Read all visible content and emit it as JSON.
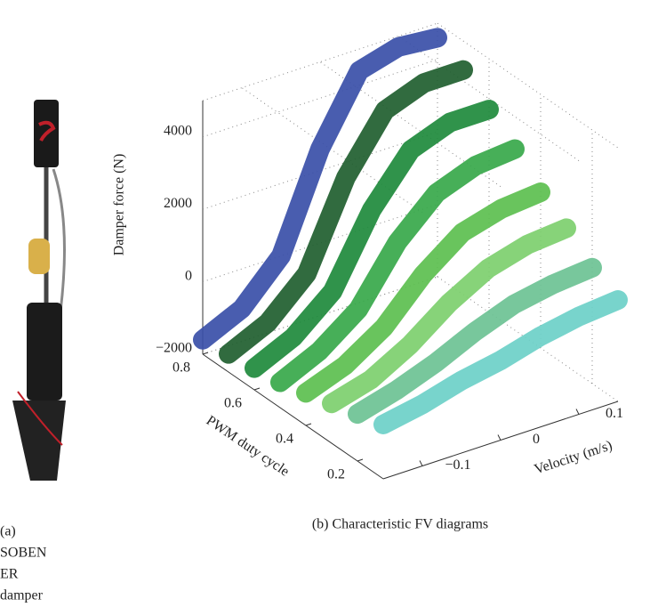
{
  "caption_a": [
    "(a)",
    "SOBEN",
    "ER",
    "damper"
  ],
  "chart_data": {
    "type": "scatter3d",
    "caption": "(b) Characteristic FV diagrams",
    "x_label": "Velocity (m/s)",
    "y_label": "PWM duty cycle",
    "z_label": "Damper force (N)",
    "xlim": [
      -0.15,
      0.15
    ],
    "ylim": [
      0.1,
      0.8
    ],
    "zlim": [
      -2000,
      5000
    ],
    "xticks": [
      {
        "value": -0.1,
        "label": "−0.1"
      },
      0,
      0.1
    ],
    "yticks": [
      0.2,
      0.4,
      0.6,
      0.8
    ],
    "zticks": [
      {
        "value": -2000,
        "label": "−2000"
      },
      0,
      2000,
      4000
    ],
    "grid": true,
    "x": [
      -0.15,
      -0.1,
      -0.05,
      0,
      0.05,
      0.1,
      0.15
    ],
    "series": [
      {
        "duty": 0.8,
        "color": "#3a4fa8",
        "values": [
          -1600,
          -1100,
          0,
          2600,
          4400,
          4700,
          4600
        ]
      },
      {
        "duty": 0.7,
        "color": "#1f5e2f",
        "values": [
          -1500,
          -1000,
          0,
          2300,
          3800,
          4200,
          4200
        ]
      },
      {
        "duty": 0.6,
        "color": "#1e8a3c",
        "values": [
          -1400,
          -900,
          0,
          1900,
          3200,
          3600,
          3600
        ]
      },
      {
        "duty": 0.5,
        "color": "#37a84a",
        "values": [
          -1300,
          -800,
          0,
          1500,
          2500,
          2900,
          3000
        ]
      },
      {
        "duty": 0.4,
        "color": "#5cbf4f",
        "values": [
          -1100,
          -700,
          0,
          1100,
          1900,
          2200,
          2300
        ]
      },
      {
        "duty": 0.3,
        "color": "#7dcf6e",
        "values": [
          -900,
          -600,
          0,
          800,
          1400,
          1700,
          1800
        ]
      },
      {
        "duty": 0.2,
        "color": "#6cc294",
        "values": [
          -700,
          -400,
          0,
          500,
          900,
          1100,
          1200
        ]
      },
      {
        "duty": 0.1,
        "color": "#6dd0c8",
        "values": [
          -500,
          -300,
          0,
          200,
          500,
          700,
          800
        ]
      }
    ]
  }
}
